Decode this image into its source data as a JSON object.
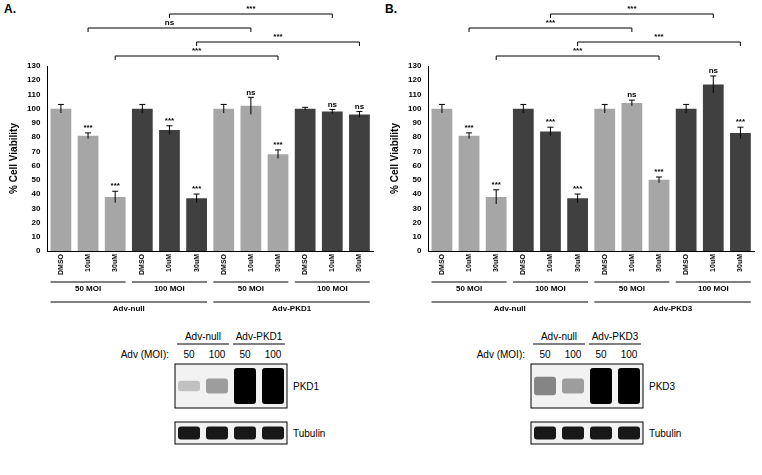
{
  "chart_data": [
    {
      "type": "bar",
      "title": "A.",
      "y_label": "% Cell Viability",
      "categories": [
        "DMSO",
        "10uM",
        "30uM",
        "DMSO",
        "10uM",
        "30uM",
        "DMSO",
        "10uM",
        "30uM",
        "DMSO",
        "10uM",
        "30uM"
      ],
      "groups": [
        [
          "50 MOI",
          "50 MOI",
          "50 MOI",
          "100 MOI",
          "100 MOI",
          "100 MOI",
          "50 MOI",
          "50 MOI",
          "50 MOI",
          "100 MOI",
          "100 MOI",
          "100 MOI"
        ],
        [
          "Adv-null",
          "Adv-null",
          "Adv-null",
          "Adv-null",
          "Adv-null",
          "Adv-null",
          "Adv-PKD1",
          "Adv-PKD1",
          "Adv-PKD1",
          "Adv-PKD1",
          "Adv-PKD1",
          "Adv-PKD1"
        ]
      ],
      "values": [
        100,
        81,
        38,
        100,
        85,
        37,
        100,
        102,
        68,
        100,
        98,
        96
      ],
      "errors": [
        3,
        2,
        4,
        3,
        3,
        3,
        3,
        6,
        3,
        1,
        1.5,
        2
      ],
      "significance": [
        null,
        "***",
        "***",
        null,
        "***",
        "***",
        null,
        "ns",
        "***",
        null,
        "ns",
        "ns"
      ],
      "comparisons": [
        {
          "from": 2,
          "to": 8,
          "label": "***"
        },
        {
          "from": 5,
          "to": 11,
          "label": "***"
        },
        {
          "from": 1,
          "to": 7,
          "label": "ns"
        },
        {
          "from": 4,
          "to": 10,
          "label": "***"
        }
      ],
      "colors": [
        "#a6a6a6",
        "#a6a6a6",
        "#a6a6a6",
        "#404040",
        "#404040",
        "#404040",
        "#a6a6a6",
        "#a6a6a6",
        "#a6a6a6",
        "#404040",
        "#404040",
        "#404040"
      ],
      "ylim": [
        0,
        130
      ],
      "yticks": [
        0,
        10,
        20,
        30,
        40,
        50,
        60,
        70,
        80,
        90,
        100,
        110,
        120,
        130
      ],
      "grid": false
    },
    {
      "type": "bar",
      "title": "B.",
      "y_label": "% Cell Viability",
      "categories": [
        "DMSO",
        "10uM",
        "30uM",
        "DMSO",
        "10uM",
        "30uM",
        "DMSO",
        "10uM",
        "30uM",
        "DMSO",
        "10uM",
        "30uM"
      ],
      "groups": [
        [
          "50 MOI",
          "50 MOI",
          "50 MOI",
          "100 MOI",
          "100 MOI",
          "100 MOI",
          "50 MOI",
          "50 MOI",
          "50 MOI",
          "100 MOI",
          "100 MOI",
          "100 MOI"
        ],
        [
          "Adv-null",
          "Adv-null",
          "Adv-null",
          "Adv-null",
          "Adv-null",
          "Adv-null",
          "Adv-PKD3",
          "Adv-PKD3",
          "Adv-PKD3",
          "Adv-PKD3",
          "Adv-PKD3",
          "Adv-PKD3"
        ]
      ],
      "values": [
        100,
        81,
        38,
        100,
        84,
        37,
        100,
        104,
        50,
        100,
        117,
        83
      ],
      "errors": [
        3,
        2,
        5,
        3,
        3,
        3,
        3,
        2,
        2,
        3,
        6,
        4
      ],
      "significance": [
        null,
        "***",
        "***",
        null,
        "***",
        "***",
        null,
        "ns",
        "***",
        null,
        "ns",
        "***"
      ],
      "comparisons": [
        {
          "from": 2,
          "to": 8,
          "label": "***"
        },
        {
          "from": 5,
          "to": 11,
          "label": "***"
        },
        {
          "from": 1,
          "to": 7,
          "label": "***"
        },
        {
          "from": 4,
          "to": 10,
          "label": "***"
        }
      ],
      "colors": [
        "#a6a6a6",
        "#a6a6a6",
        "#a6a6a6",
        "#404040",
        "#404040",
        "#404040",
        "#a6a6a6",
        "#a6a6a6",
        "#a6a6a6",
        "#404040",
        "#404040",
        "#404040"
      ],
      "ylim": [
        0,
        130
      ],
      "yticks": [
        0,
        10,
        20,
        30,
        40,
        50,
        60,
        70,
        80,
        90,
        100,
        110,
        120,
        130
      ],
      "grid": false
    }
  ],
  "blots": [
    {
      "groups": [
        "Adv-null",
        "Adv-PKD1"
      ],
      "moi_label": "Adv (MOI):",
      "moi": [
        50,
        100,
        50,
        100
      ],
      "rows": [
        {
          "label": "PKD1",
          "intensity": [
            0.2,
            0.35,
            1,
            1
          ]
        },
        {
          "label": "Tubulin",
          "intensity": [
            0.9,
            0.9,
            0.9,
            0.9
          ]
        }
      ]
    },
    {
      "groups": [
        "Adv-null",
        "Adv-PKD3"
      ],
      "moi_label": "Adv (MOI):",
      "moi": [
        50,
        100,
        50,
        100
      ],
      "rows": [
        {
          "label": "PKD3",
          "intensity": [
            0.45,
            0.35,
            1,
            1
          ]
        },
        {
          "label": "Tubulin",
          "intensity": [
            0.9,
            0.9,
            0.9,
            0.9
          ]
        }
      ]
    }
  ]
}
